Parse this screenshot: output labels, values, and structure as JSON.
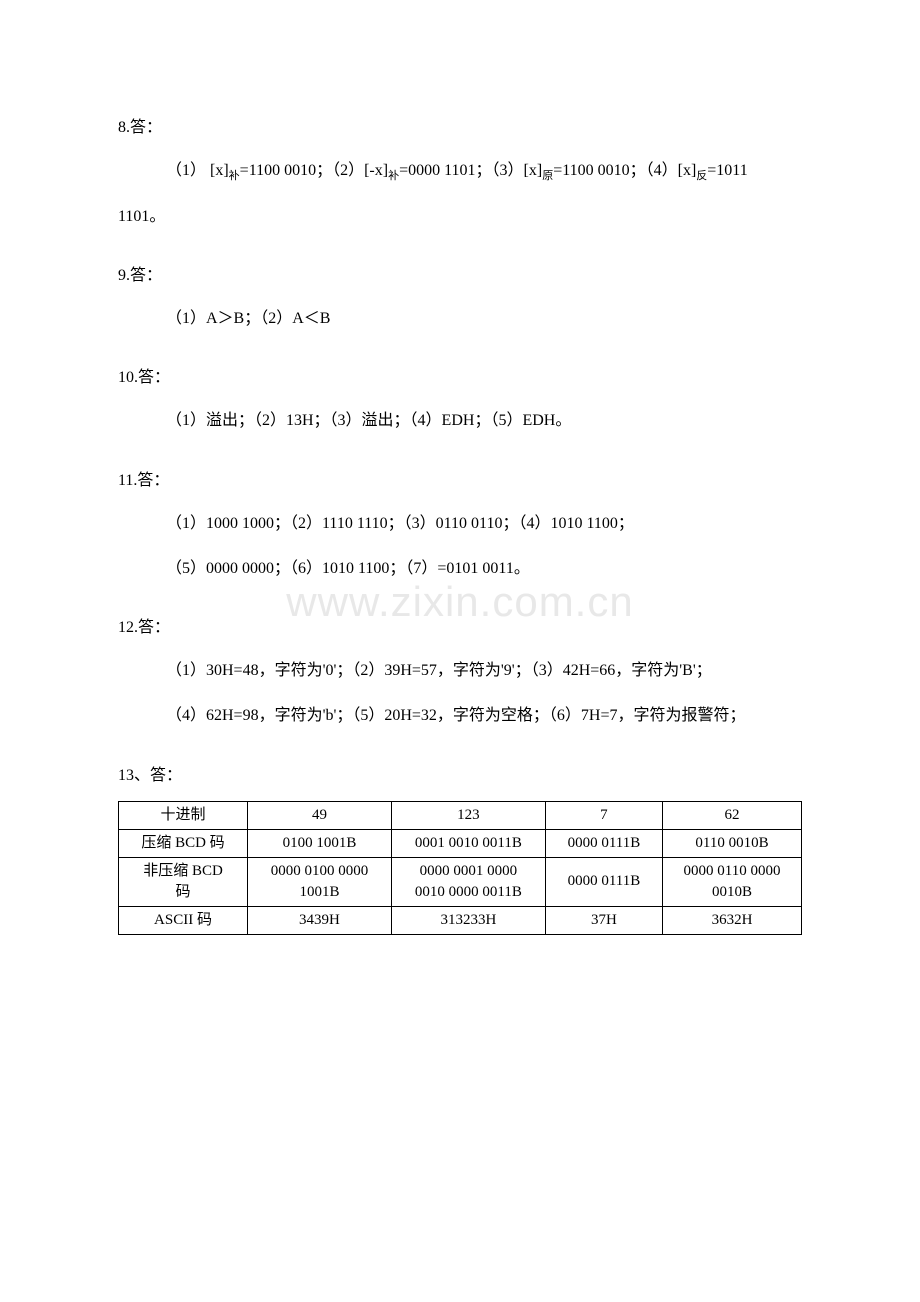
{
  "watermark": "www.zixin.com.cn",
  "q8": {
    "header": "8.答：",
    "line1_parts": {
      "open": "（1） [x]",
      "sub1": "补",
      "t1": "=1100 0010；（2）[-x]",
      "sub2": "补",
      "t2": "=0000 1101；（3）[x]",
      "sub3": "原",
      "t3": "=1100 0010；（4）[x]",
      "sub4": "反",
      "t4": "=1011"
    },
    "line2": "1101。"
  },
  "q9": {
    "header": "9.答：",
    "body": "（1）A＞B；（2）A＜B"
  },
  "q10": {
    "header": "10.答：",
    "body": "（1）溢出；（2）13H；（3）溢出；（4）EDH；（5）EDH。"
  },
  "q11": {
    "header": "11.答：",
    "line1": "（1）1000 1000；（2）1110 1110；（3）0110 0110；（4）1010 1100；",
    "line2": "（5）0000 0000；（6）1010 1100；（7）=0101 0011。"
  },
  "q12": {
    "header": "12.答：",
    "line1": "（1）30H=48，字符为'0'；（2）39H=57，字符为'9'；（3）42H=66，字符为'B'；",
    "line2": "（4）62H=98，字符为'b'；（5）20H=32，字符为空格；（6）7H=7，字符为报警符；"
  },
  "q13": {
    "header": "13、答：",
    "table": {
      "rows": [
        [
          "十进制",
          "49",
          "123",
          "7",
          "62"
        ],
        [
          "压缩 BCD 码",
          "0100 1001B",
          "0001 0010 0011B",
          "0000 0111B",
          "0110 0010B"
        ],
        [
          "非压缩 BCD\n码",
          "0000 0100 0000\n1001B",
          "0000 0001 0000\n0010 0000 0011B",
          "0000 0111B",
          "0000 0110 0000\n0010B"
        ],
        [
          "ASCII 码",
          "3439H",
          "313233H",
          "37H",
          "3632H"
        ]
      ]
    }
  }
}
